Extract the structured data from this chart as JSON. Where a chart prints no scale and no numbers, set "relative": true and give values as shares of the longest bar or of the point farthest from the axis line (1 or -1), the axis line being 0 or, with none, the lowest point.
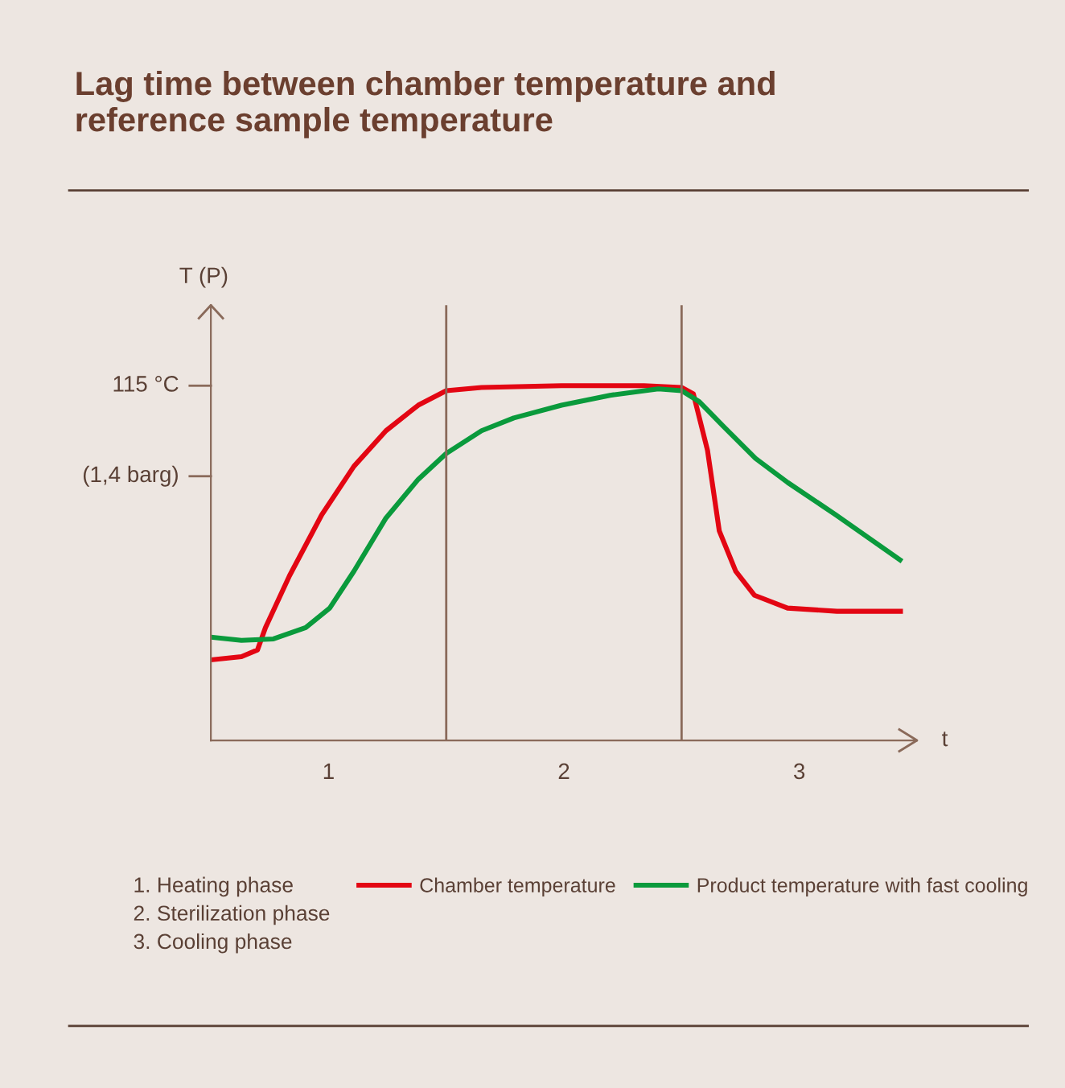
{
  "chart_data": {
    "type": "line",
    "title": "Lag time between chamber temperature and\nreference sample temperature",
    "xlabel": "t",
    "ylabel": "T (P)",
    "relative": true,
    "xlim": [
      0,
      3
    ],
    "xticks": [
      {
        "value": 0.5,
        "label": "1"
      },
      {
        "value": 1.5,
        "label": "2"
      },
      {
        "value": 2.5,
        "label": "3"
      }
    ],
    "ref_lines": [
      {
        "axis": "x",
        "value": 1,
        "color": "#8a6a5a"
      },
      {
        "axis": "x",
        "value": 2,
        "color": "#8a6a5a"
      }
    ],
    "legend": "bottom",
    "grid": false,
    "annotations": [
      "115 °C",
      "(1,4 barg)",
      "1. Heating phase",
      "2. Sterilization phase",
      "3. Cooling phase"
    ],
    "series": [
      {
        "name": "Chamber temperature",
        "color": "#e30613",
        "x": [
          0,
          0.13,
          0.198,
          0.232,
          0.334,
          0.471,
          0.608,
          0.744,
          0.881,
          1.0,
          1.15,
          1.49,
          1.84,
          2.0,
          2.05,
          2.11,
          2.16,
          2.23,
          2.31,
          2.45,
          2.66,
          2.93
        ],
        "values": [
          0.227,
          0.236,
          0.255,
          0.318,
          0.464,
          0.636,
          0.773,
          0.873,
          0.945,
          0.986,
          0.995,
          1.0,
          1.0,
          0.995,
          0.977,
          0.818,
          0.591,
          0.477,
          0.409,
          0.373,
          0.364,
          0.364
        ]
      },
      {
        "name": "Product temperature with fast cooling",
        "color": "#0a9a3c",
        "x": [
          0,
          0.13,
          0.266,
          0.403,
          0.505,
          0.608,
          0.744,
          0.881,
          1.0,
          1.15,
          1.287,
          1.49,
          1.696,
          1.901,
          2.0,
          2.075,
          2.177,
          2.314,
          2.451,
          2.655,
          2.928
        ],
        "values": [
          0.291,
          0.282,
          0.286,
          0.318,
          0.373,
          0.477,
          0.627,
          0.736,
          0.809,
          0.873,
          0.909,
          0.945,
          0.973,
          0.991,
          0.986,
          0.955,
          0.886,
          0.795,
          0.727,
          0.636,
          0.509
        ]
      }
    ]
  }
}
